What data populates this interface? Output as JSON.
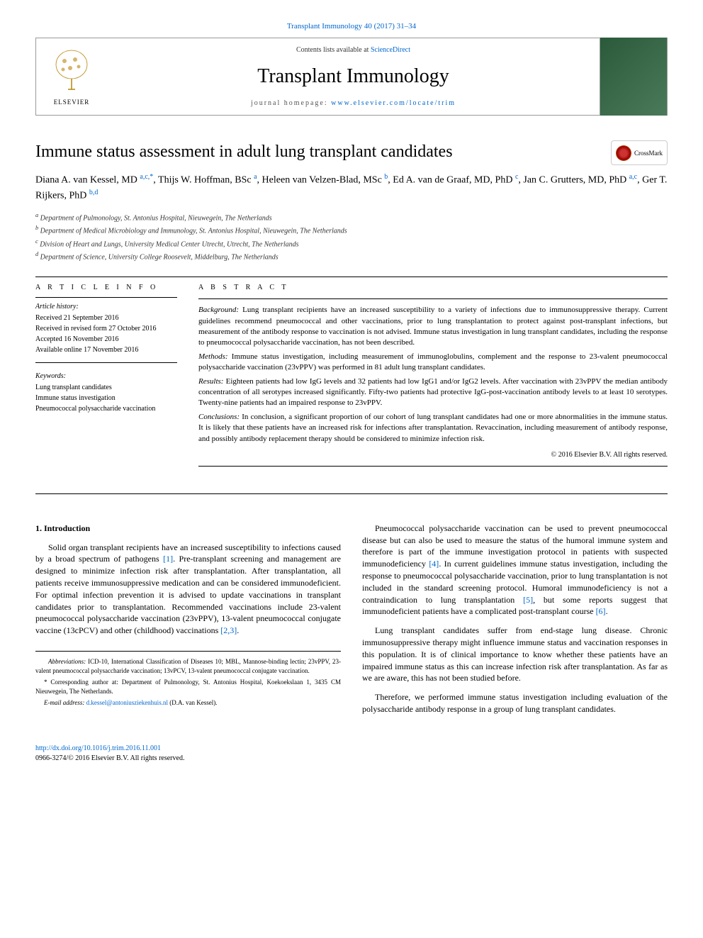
{
  "journal_ref": "Transplant Immunology 40 (2017) 31–34",
  "header": {
    "contents_prefix": "Contents lists available at ",
    "contents_link": "ScienceDirect",
    "journal_title": "Transplant Immunology",
    "homepage_prefix": "journal homepage: ",
    "homepage_link": "www.elsevier.com/locate/trim",
    "publisher": "ELSEVIER"
  },
  "article_title": "Immune status assessment in adult lung transplant candidates",
  "crossmark": "CrossMark",
  "authors_html": "Diana A. van Kessel, MD <sup>a,c,*</sup>, Thijs W. Hoffman, BSc <sup>a</sup>, Heleen van Velzen-Blad, MSc <sup>b</sup>, Ed A. van de Graaf, MD, PhD <sup>c</sup>, Jan C. Grutters, MD, PhD <sup>a,c</sup>, Ger T. Rijkers, PhD <sup>b,d</sup>",
  "affiliations": [
    "a Department of Pulmonology, St. Antonius Hospital, Nieuwegein, The Netherlands",
    "b Department of Medical Microbiology and Immunology, St. Antonius Hospital, Nieuwegein, The Netherlands",
    "c Division of Heart and Lungs, University Medical Center Utrecht, Utrecht, The Netherlands",
    "d Department of Science, University College Roosevelt, Middelburg, The Netherlands"
  ],
  "article_info": {
    "heading": "A R T I C L E   I N F O",
    "history_label": "Article history:",
    "history": [
      "Received 21 September 2016",
      "Received in revised form 27 October 2016",
      "Accepted 16 November 2016",
      "Available online 17 November 2016"
    ],
    "keywords_label": "Keywords:",
    "keywords": [
      "Lung transplant candidates",
      "Immune status investigation",
      "Pneumococcal polysaccharide vaccination"
    ]
  },
  "abstract": {
    "heading": "A B S T R A C T",
    "background_label": "Background:",
    "background": " Lung transplant recipients have an increased susceptibility to a variety of infections due to immunosuppressive therapy. Current guidelines recommend pneumococcal and other vaccinations, prior to lung transplantation to protect against post-transplant infections, but measurement of the antibody response to vaccination is not advised. Immune status investigation in lung transplant candidates, including the response to pneumococcal polysaccharide vaccination, has not been described.",
    "methods_label": "Methods:",
    "methods": " Immune status investigation, including measurement of immunoglobulins, complement and the response to 23-valent pneumococcal polysaccharide vaccination (23vPPV) was performed in 81 adult lung transplant candidates.",
    "results_label": "Results:",
    "results": " Eighteen patients had low IgG levels and 32 patients had low IgG1 and/or IgG2 levels. After vaccination with 23vPPV the median antibody concentration of all serotypes increased significantly. Fifty-two patients had protective IgG-post-vaccination antibody levels to at least 10 serotypes. Twenty-nine patients had an impaired response to 23vPPV.",
    "conclusions_label": "Conclusions:",
    "conclusions": " In conclusion, a significant proportion of our cohort of lung transplant candidates had one or more abnormalities in the immune status. It is likely that these patients have an increased risk for infections after transplantation. Revaccination, including measurement of antibody response, and possibly antibody replacement therapy should be considered to minimize infection risk.",
    "copyright": "© 2016 Elsevier B.V. All rights reserved."
  },
  "intro": {
    "heading": "1. Introduction",
    "p1_pre": "Solid organ transplant recipients have an increased susceptibility to infections caused by a broad spectrum of pathogens ",
    "p1_ref1": "[1]",
    "p1_mid": ". Pre-transplant screening and management are designed to minimize infection risk after transplantation. After transplantation, all patients receive immunosuppressive medication and can be considered immunodeficient. For optimal infection prevention it is advised to update vaccinations in transplant candidates prior to transplantation. Recommended vaccinations include 23-valent pneumococcal polysaccharide vaccination (23vPPV), 13-valent pneumococcal conjugate vaccine (13cPCV) and other (childhood) vaccinations ",
    "p1_ref2": "[2,3]",
    "p1_post": ".",
    "p2_pre": "Pneumococcal polysaccharide vaccination can be used to prevent pneumococcal disease but can also be used to measure the status of the humoral immune system and therefore is part of the immune investigation protocol in patients with suspected immunodeficiency ",
    "p2_ref1": "[4]",
    "p2_mid1": ". In current guidelines immune status investigation, including the response to pneumococcal polysaccharide vaccination, prior to lung transplantation is not included in the standard screening protocol. Humoral immunodeficiency is not a contraindication to lung transplantation ",
    "p2_ref2": "[5]",
    "p2_mid2": ", but some reports suggest that immunodeficient patients have a complicated post-transplant course ",
    "p2_ref3": "[6]",
    "p2_post": ".",
    "p3": "Lung transplant candidates suffer from end-stage lung disease. Chronic immunosuppressive therapy might influence immune status and vaccination responses in this population. It is of clinical importance to know whether these patients have an impaired immune status as this can increase infection risk after transplantation. As far as we are aware, this has not been studied before.",
    "p4": "Therefore, we performed immune status investigation including evaluation of the polysaccharide antibody response in a group of lung transplant candidates."
  },
  "footnotes": {
    "abbrev_label": "Abbreviations:",
    "abbrev": " ICD-10, International Classification of Diseases 10; MBL, Mannose-binding lectin; 23vPPV, 23-valent pneumococcal polysaccharide vaccination; 13vPCV, 13-valent pneumococcal conjugate vaccination.",
    "corr_label": "* Corresponding author at:",
    "corr": " Department of Pulmonology, St. Antonius Hospital, Koekoekslaan 1, 3435 CM Nieuwegein, The Netherlands.",
    "email_label": "E-mail address: ",
    "email": "d.kessel@antoniusziekenhuis.nl",
    "email_post": " (D.A. van Kessel)."
  },
  "footer": {
    "doi": "http://dx.doi.org/10.1016/j.trim.2016.11.001",
    "issn": "0966-3274/© 2016 Elsevier B.V. All rights reserved."
  },
  "colors": {
    "link": "#0066cc",
    "text": "#000000",
    "border": "#999999",
    "cover_bg": "#3a6a4a"
  }
}
